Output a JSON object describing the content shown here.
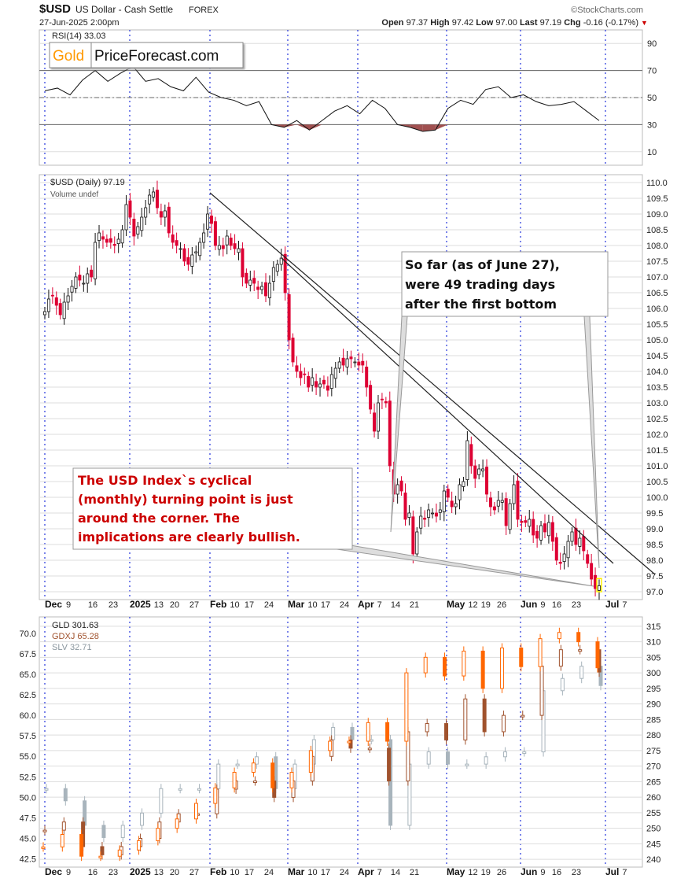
{
  "header": {
    "symbol": "$USD",
    "name": "US Dollar - Cash Settle",
    "exchange": "FOREX",
    "datetime": "27-Jun-2025 2:00pm",
    "credit": "©StockCharts.com",
    "open_label": "Open",
    "open": "97.37",
    "high_label": "High",
    "high": "97.42",
    "low_label": "Low",
    "low": "97.00",
    "last_label": "Last",
    "last": "97.19",
    "chg_label": "Chg",
    "chg": "-0.16 (-0.17%)",
    "chg_arrow": "▼"
  },
  "logo": {
    "gold": "Gold",
    "rest": "PriceForecast.com"
  },
  "colors": {
    "up": "#ffffff",
    "down": "#dd0033",
    "rsi_fill": "#a05050",
    "grid": "#dddddd",
    "month_line": "#2233dd",
    "gld": "#ff6600",
    "gdxj": "#a0522d",
    "slv": "#a8b4bc",
    "gold_text": "#ff9900",
    "annot_red": "#cc0000"
  },
  "chart_data": [
    {
      "type": "line",
      "title": "RSI(14) 33.03",
      "yticks": [
        "90",
        "70",
        "50",
        "30",
        "10"
      ],
      "ylim": [
        0,
        100
      ],
      "reference_levels": [
        70,
        50,
        30
      ],
      "values": [
        55,
        57,
        52,
        63,
        70,
        62,
        68,
        73,
        62,
        64,
        58,
        55,
        65,
        54,
        50,
        48,
        44,
        47,
        30,
        28,
        33,
        26,
        33,
        40,
        44,
        38,
        48,
        42,
        30,
        28,
        25,
        26,
        42,
        48,
        45,
        56,
        58,
        50,
        52,
        47,
        44,
        45,
        47,
        40,
        33
      ]
    },
    {
      "type": "candlestick",
      "title": "$USD (Daily) 97.19",
      "subtitle": "Volume undef",
      "ylim": [
        96.75,
        110.25
      ],
      "yticks": [
        "110.0",
        "109.5",
        "109.0",
        "108.5",
        "108.0",
        "107.5",
        "107.0",
        "106.5",
        "106.0",
        "105.5",
        "105.0",
        "104.5",
        "104.0",
        "103.5",
        "103.0",
        "102.5",
        "102.0",
        "101.5",
        "101.0",
        "100.5",
        "100.0",
        "99.5",
        "99.0",
        "98.5",
        "98.0",
        "97.5",
        "97.0"
      ],
      "xticks": [
        "Dec",
        "9",
        "16",
        "23",
        "2025",
        "13",
        "20",
        "27",
        "Feb",
        "10",
        "17",
        "24",
        "Mar",
        "10",
        "17",
        "24",
        "Apr",
        "7",
        "14",
        "21",
        "May",
        "12",
        "19",
        "26",
        "Jun",
        "9",
        "16",
        "23",
        "Jul",
        "7"
      ],
      "closes": [
        105.9,
        106.3,
        106.4,
        106.1,
        105.8,
        106.2,
        106.4,
        106.7,
        107.0,
        106.9,
        106.8,
        107.1,
        107.0,
        108.1,
        108.4,
        108.2,
        108.1,
        108.1,
        108.0,
        108.2,
        108.5,
        109.3,
        108.9,
        108.3,
        108.6,
        108.9,
        109.2,
        109.6,
        109.7,
        109.2,
        108.9,
        109.1,
        108.4,
        108.1,
        108.0,
        107.9,
        107.5,
        107.4,
        107.7,
        107.8,
        108.1,
        108.4,
        109.0,
        108.7,
        108.0,
        108.0,
        107.9,
        108.3,
        108.0,
        107.9,
        107.9,
        107.0,
        106.8,
        106.9,
        106.8,
        106.6,
        106.7,
        106.4,
        106.8,
        107.3,
        107.4,
        107.6,
        106.5,
        105.0,
        104.3,
        104.0,
        103.8,
        103.9,
        103.5,
        103.8,
        103.5,
        103.6,
        103.6,
        103.4,
        103.9,
        104.1,
        104.3,
        104.2,
        104.4,
        104.4,
        104.3,
        104.2,
        104.2,
        103.5,
        102.8,
        102.1,
        103.0,
        103.1,
        103.0,
        101.0,
        100.1,
        100.4,
        100.2,
        99.3,
        99.5,
        98.2,
        98.9,
        99.4,
        99.3,
        99.6,
        99.5,
        99.4,
        99.6,
        100.2,
        100.0,
        99.7,
        99.8,
        100.4,
        100.5,
        101.8,
        101.0,
        100.6,
        100.9,
        100.9,
        100.1,
        99.7,
        99.6,
        99.9,
        99.9,
        99.1,
        99.8,
        100.4,
        99.3,
        99.2,
        99.2,
        99.3,
        98.8,
        98.7,
        99.1,
        98.9,
        99.2,
        98.6,
        98.0,
        97.9,
        98.2,
        98.6,
        98.9,
        98.5,
        98.7,
        98.3,
        97.9,
        97.4,
        97.1,
        97.19
      ],
      "annotations": [
        "So far (as of June 27),",
        "were 49 trading days",
        "after the first bottom",
        "The USD Index`s cyclical",
        "(monthly) turning point is just",
        "around the corner. The",
        "implications are clearly bullish."
      ]
    },
    {
      "type": "candlestick",
      "series": [
        {
          "name": "GLD 301.63",
          "axis": "right",
          "values": [
            244,
            248,
            241,
            241,
            243,
            246,
            250,
            253,
            258,
            263,
            268,
            271,
            263,
            268,
            275,
            278,
            278,
            284,
            278,
            300,
            305,
            299,
            307,
            295,
            308,
            302,
            311,
            313,
            310,
            301.63
          ]
        },
        {
          "name": "GDXJ 65.28",
          "axis": "left",
          "values": [
            46,
            47,
            44,
            43,
            44,
            45,
            47,
            48,
            48,
            51,
            52,
            52,
            50,
            52,
            55,
            57,
            56,
            56,
            52,
            58,
            59,
            57,
            62,
            58,
            60,
            60,
            66,
            68,
            68,
            65.28
          ]
        },
        {
          "name": "SLV 32.71",
          "axis": "none",
          "values": [
            28.5,
            28,
            27,
            26.5,
            27,
            27.5,
            28.5,
            28.5,
            28.5,
            29.5,
            29.5,
            29.8,
            28.5,
            29.5,
            30.5,
            31,
            30.5,
            30.5,
            27,
            29.5,
            30,
            29.5,
            29.5,
            29.8,
            30,
            30,
            32.5,
            33,
            33.5,
            32.71
          ]
        }
      ],
      "left_ylim": [
        41.5,
        72.0
      ],
      "right_ylim": [
        237.5,
        318
      ],
      "left_yticks": [
        "70.0",
        "67.5",
        "65.0",
        "62.5",
        "60.0",
        "57.5",
        "55.0",
        "52.5",
        "50.0",
        "47.5",
        "45.0",
        "42.5"
      ],
      "right_yticks": [
        "315",
        "310",
        "305",
        "300",
        "295",
        "290",
        "285",
        "280",
        "275",
        "270",
        "265",
        "260",
        "255",
        "250",
        "245",
        "240"
      ],
      "xticks": [
        "Dec",
        "9",
        "16",
        "23",
        "2025",
        "13",
        "20",
        "27",
        "Feb",
        "10",
        "17",
        "24",
        "Mar",
        "10",
        "17",
        "24",
        "Apr",
        "7",
        "14",
        "21",
        "May",
        "12",
        "19",
        "26",
        "Jun",
        "9",
        "16",
        "23",
        "Jul",
        "7"
      ]
    }
  ]
}
